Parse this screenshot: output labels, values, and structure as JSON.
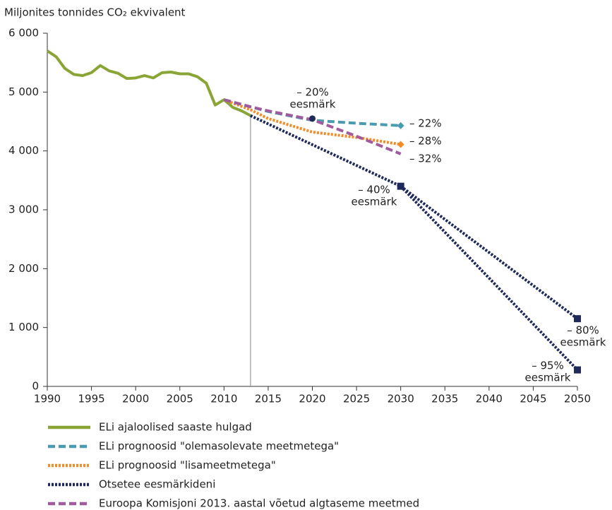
{
  "chart_data": {
    "type": "line",
    "y_label": "Miljonites tonnides CO₂ ekvivalent",
    "xlim": [
      1990,
      2050
    ],
    "xticks": [
      1990,
      1995,
      2000,
      2005,
      2010,
      2015,
      2020,
      2025,
      2030,
      2035,
      2040,
      2045,
      2050
    ],
    "ylim": [
      0,
      6000
    ],
    "yticks": [
      0,
      {
        "value": 1000,
        "label": "1 000"
      },
      {
        "value": 2000,
        "label": "2 000"
      },
      {
        "value": 3000,
        "label": "3 000"
      },
      {
        "value": 4000,
        "label": "4 000"
      },
      {
        "value": 5000,
        "label": "5 000"
      },
      {
        "value": 6000,
        "label": "6 000"
      }
    ],
    "grid": false,
    "legend": "bottom",
    "vline": 2013,
    "series": [
      {
        "name": "ELi ajaloolised saaste hulgad",
        "color": "#8aa536",
        "dash": "solid",
        "lines": [
          {
            "x": [
              1990,
              1991,
              1992,
              1993,
              1994,
              1995,
              1996,
              1997,
              1998,
              1999,
              2000,
              2001,
              2002,
              2003,
              2004,
              2005,
              2006,
              2007,
              2008,
              2009,
              2010,
              2011,
              2012,
              2013
            ],
            "values": [
              5700,
              5600,
              5400,
              5300,
              5280,
              5330,
              5450,
              5360,
              5320,
              5230,
              5240,
              5280,
              5240,
              5330,
              5340,
              5310,
              5310,
              5260,
              5150,
              4780,
              4870,
              4740,
              4680,
              4600
            ]
          }
        ]
      },
      {
        "name": "ELi prognoosid \"olemasolevate meetmetega\"",
        "color": "#4a9bb0",
        "dash": "dashed",
        "lines": [
          {
            "x": [
              2010,
              2013,
              2015,
              2020,
              2025,
              2030
            ],
            "values": [
              4870,
              4750,
              4670,
              4520,
              4470,
              4430
            ]
          }
        ]
      },
      {
        "name": "ELi prognoosid \"lisameetmetega\"",
        "color": "#f28c28",
        "dash": "dotted",
        "lines": [
          {
            "x": [
              2010,
              2013,
              2015,
              2020,
              2025,
              2030
            ],
            "values": [
              4870,
              4700,
              4550,
              4320,
              4230,
              4110
            ]
          }
        ]
      },
      {
        "name": "Otsetee eesmärkideni",
        "color": "#1f2a5c",
        "dash": "dotted",
        "lines": [
          {
            "x": [
              2013,
              2030,
              2050
            ],
            "values": [
              4600,
              3400,
              1150
            ]
          },
          {
            "x": [
              2030,
              2050
            ],
            "values": [
              3400,
              280
            ]
          }
        ]
      },
      {
        "name": "Euroopa Komisjoni 2013. aastal võetud algtaseme meetmed",
        "color": "#a05a9e",
        "dash": "dashed",
        "lines": [
          {
            "x": [
              2010,
              2013,
              2015,
              2020,
              2025,
              2030
            ],
            "values": [
              4870,
              4750,
              4680,
              4530,
              4250,
              3950
            ]
          }
        ]
      }
    ],
    "targets": [
      {
        "x": 2020,
        "value": 4550,
        "marker": "circle",
        "color": "#1f2a5c",
        "label": [
          "– 20%",
          "eesmärk"
        ]
      },
      {
        "x": 2030,
        "value": 4430,
        "marker": "diamond",
        "color": "#4a9bb0",
        "label": [
          "– 22%"
        ]
      },
      {
        "x": 2030,
        "value": 4110,
        "marker": "diamond",
        "color": "#f28c28",
        "label": [
          "– 28%"
        ]
      },
      {
        "x": 2030,
        "value": 3950,
        "marker": "none",
        "color": "#a05a9e",
        "label": [
          "– 32%"
        ]
      },
      {
        "x": 2030,
        "value": 3400,
        "marker": "square",
        "color": "#1f2a5c",
        "label": [
          "– 40%",
          "eesmärk"
        ]
      },
      {
        "x": 2050,
        "value": 1150,
        "marker": "square",
        "color": "#1f2a5c",
        "label": [
          "– 80%",
          "eesmärk"
        ]
      },
      {
        "x": 2050,
        "value": 280,
        "marker": "square",
        "color": "#1f2a5c",
        "label": [
          "– 95%",
          "eesmärk"
        ]
      }
    ]
  }
}
